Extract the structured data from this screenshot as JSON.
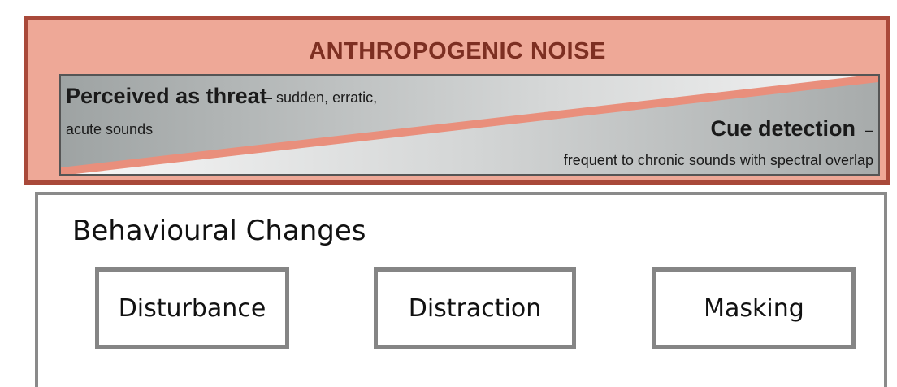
{
  "noise": {
    "title": "ANTHROPOGENIC NOISE",
    "threat": {
      "heading": "Perceived as threat",
      "detail": "– sudden, erratic,",
      "detail_line2": "acute sounds"
    },
    "cue": {
      "heading": "Cue detection",
      "dash": "–",
      "detail": "frequent to chronic sounds with spectral overlap"
    },
    "colors": {
      "panel_fill": "#eea897",
      "panel_border": "#a9493a",
      "title_text": "#7d2f22",
      "wedge_gray": "#b8bcbc",
      "wedge_light": "#f1f1f1",
      "divider": "#e98f7c"
    }
  },
  "behaviour": {
    "title": "Behavioural Changes",
    "boxes": [
      "Disturbance",
      "Distraction",
      "Masking"
    ]
  }
}
